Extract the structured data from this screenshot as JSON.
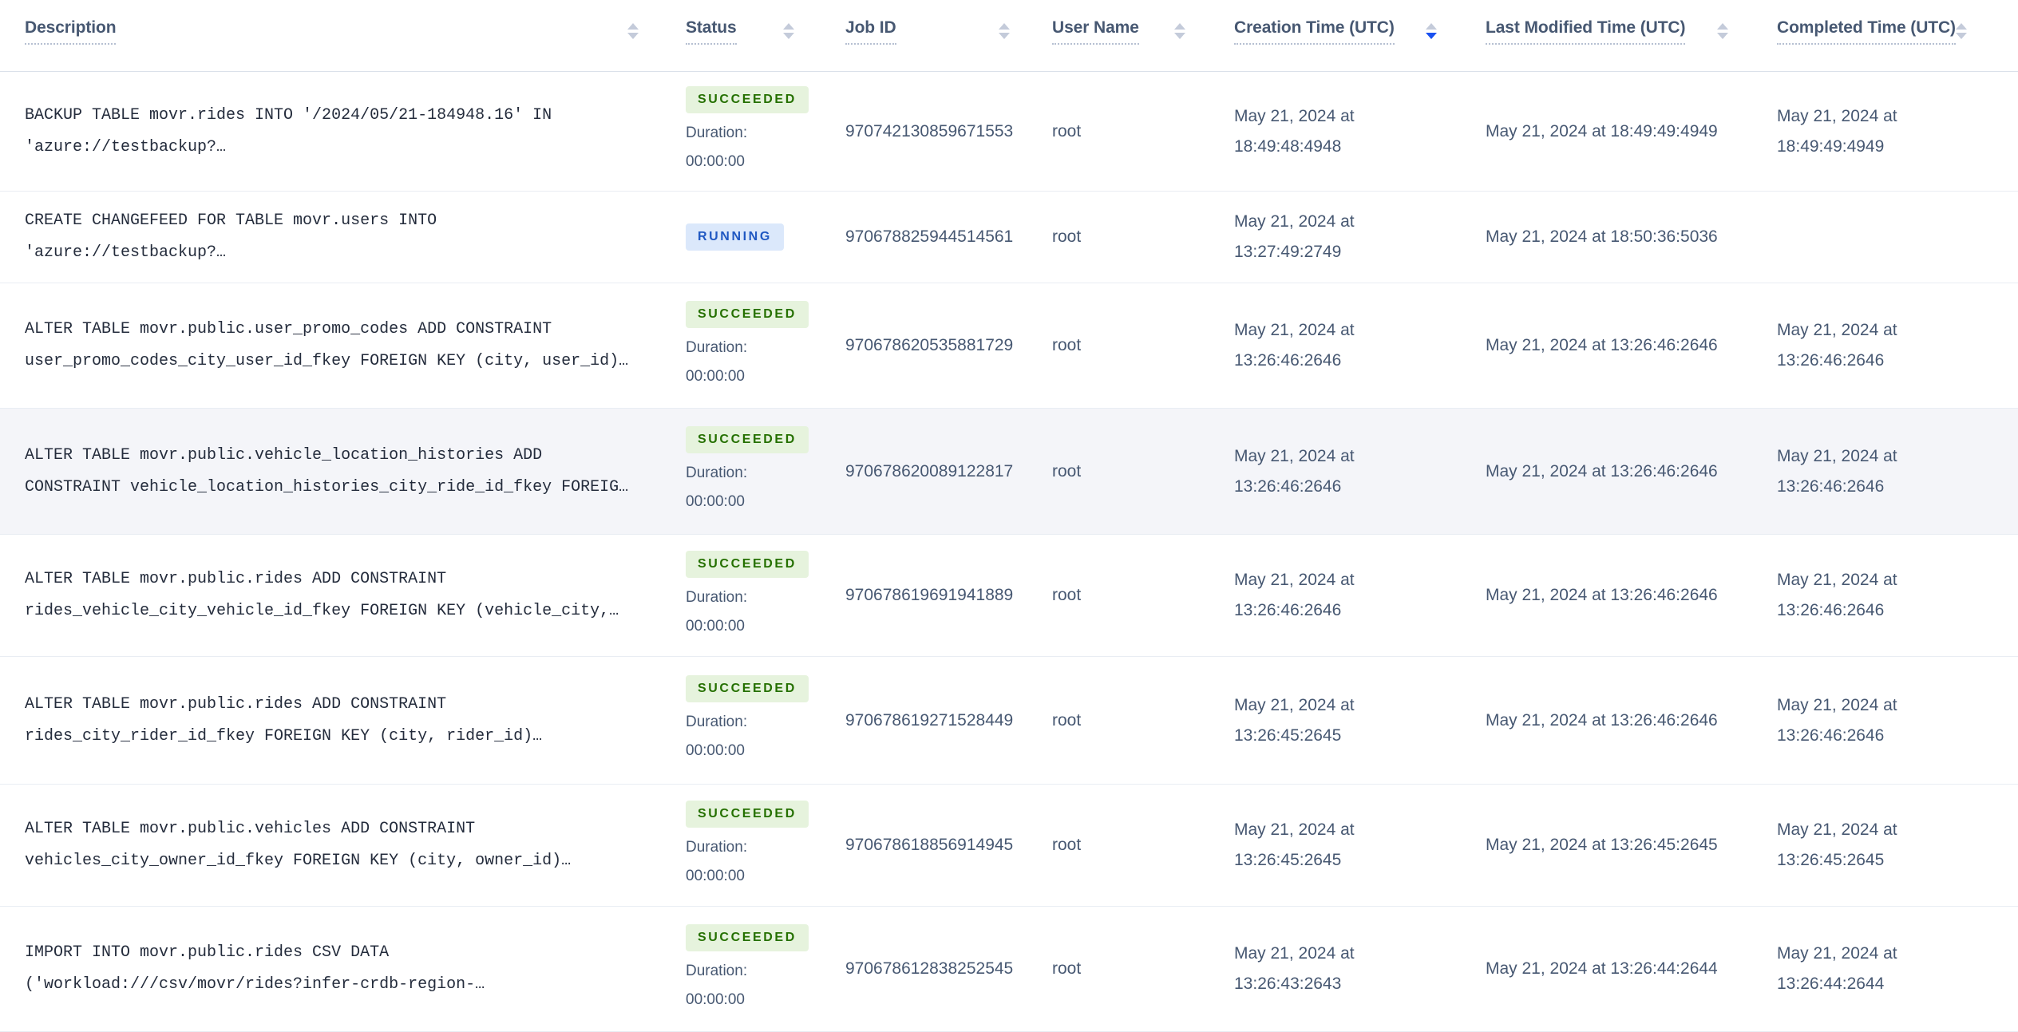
{
  "colors": {
    "sort_active_blue": "#1a51f0",
    "succeeded_bg": "#e6f3dd",
    "succeeded_text": "#257000",
    "running_bg": "#dbe8fb",
    "running_text": "#2058c2",
    "header_text": "#475872",
    "body_text": "#475872",
    "description_text": "#242c3c",
    "row_highlight_bg": "#f4f5f9"
  },
  "table": {
    "columns": [
      {
        "key": "description",
        "label": "Description",
        "sort": "none"
      },
      {
        "key": "status",
        "label": "Status",
        "sort": "none"
      },
      {
        "key": "job_id",
        "label": "Job ID",
        "sort": "none"
      },
      {
        "key": "user_name",
        "label": "User Name",
        "sort": "none"
      },
      {
        "key": "creation_time",
        "label": "Creation Time (UTC)",
        "sort": "desc"
      },
      {
        "key": "last_modified_time",
        "label": "Last Modified Time (UTC)",
        "sort": "none"
      },
      {
        "key": "completed_time",
        "label": "Completed Time (UTC)",
        "sort": "none"
      }
    ],
    "rows": [
      {
        "description_line1": "BACKUP TABLE movr.rides INTO '/2024/05/21-184948.16' IN",
        "description_line2": "'azure://testbackup?…",
        "status": "SUCCEEDED",
        "duration_label": "Duration:",
        "duration": "00:00:00",
        "job_id": "970742130859671553",
        "user_name": "root",
        "created_line1": "May 21, 2024 at",
        "created_line2": "18:49:48:4948",
        "modified": "May 21, 2024 at 18:49:49:4949",
        "completed_line1": "May 21, 2024 at",
        "completed_line2": "18:49:49:4949",
        "highlighted": false
      },
      {
        "description_line1": "CREATE CHANGEFEED FOR TABLE movr.users INTO",
        "description_line2": "'azure://testbackup?…",
        "status": "RUNNING",
        "duration_label": "",
        "duration": "",
        "job_id": "970678825944514561",
        "user_name": "root",
        "created_line1": "May 21, 2024 at",
        "created_line2": "13:27:49:2749",
        "modified": "May 21, 2024 at 18:50:36:5036",
        "completed_line1": "",
        "completed_line2": "",
        "highlighted": false
      },
      {
        "description_line1": "ALTER TABLE movr.public.user_promo_codes ADD CONSTRAINT",
        "description_line2": "user_promo_codes_city_user_id_fkey FOREIGN KEY (city, user_id)…",
        "status": "SUCCEEDED",
        "duration_label": "Duration:",
        "duration": "00:00:00",
        "job_id": "970678620535881729",
        "user_name": "root",
        "created_line1": "May 21, 2024 at",
        "created_line2": "13:26:46:2646",
        "modified": "May 21, 2024 at 13:26:46:2646",
        "completed_line1": "May 21, 2024 at",
        "completed_line2": "13:26:46:2646",
        "highlighted": false
      },
      {
        "description_line1": "ALTER TABLE movr.public.vehicle_location_histories ADD",
        "description_line2": "CONSTRAINT vehicle_location_histories_city_ride_id_fkey FOREIG…",
        "status": "SUCCEEDED",
        "duration_label": "Duration:",
        "duration": "00:00:00",
        "job_id": "970678620089122817",
        "user_name": "root",
        "created_line1": "May 21, 2024 at",
        "created_line2": "13:26:46:2646",
        "modified": "May 21, 2024 at 13:26:46:2646",
        "completed_line1": "May 21, 2024 at",
        "completed_line2": "13:26:46:2646",
        "highlighted": true
      },
      {
        "description_line1": "ALTER TABLE movr.public.rides ADD CONSTRAINT",
        "description_line2": "rides_vehicle_city_vehicle_id_fkey FOREIGN KEY (vehicle_city,…",
        "status": "SUCCEEDED",
        "duration_label": "Duration:",
        "duration": "00:00:00",
        "job_id": "970678619691941889",
        "user_name": "root",
        "created_line1": "May 21, 2024 at",
        "created_line2": "13:26:46:2646",
        "modified": "May 21, 2024 at 13:26:46:2646",
        "completed_line1": "May 21, 2024 at",
        "completed_line2": "13:26:46:2646",
        "highlighted": false
      },
      {
        "description_line1": "ALTER TABLE movr.public.rides ADD CONSTRAINT",
        "description_line2": "rides_city_rider_id_fkey FOREIGN KEY (city, rider_id)…",
        "status": "SUCCEEDED",
        "duration_label": "Duration:",
        "duration": "00:00:00",
        "job_id": "970678619271528449",
        "user_name": "root",
        "created_line1": "May 21, 2024 at",
        "created_line2": "13:26:45:2645",
        "modified": "May 21, 2024 at 13:26:46:2646",
        "completed_line1": "May 21, 2024 at",
        "completed_line2": "13:26:46:2646",
        "highlighted": false
      },
      {
        "description_line1": "ALTER TABLE movr.public.vehicles ADD CONSTRAINT",
        "description_line2": "vehicles_city_owner_id_fkey FOREIGN KEY (city, owner_id)…",
        "status": "SUCCEEDED",
        "duration_label": "Duration:",
        "duration": "00:00:00",
        "job_id": "970678618856914945",
        "user_name": "root",
        "created_line1": "May 21, 2024 at",
        "created_line2": "13:26:45:2645",
        "modified": "May 21, 2024 at 13:26:45:2645",
        "completed_line1": "May 21, 2024 at",
        "completed_line2": "13:26:45:2645",
        "highlighted": false
      },
      {
        "description_line1": "IMPORT INTO movr.public.rides CSV DATA",
        "description_line2": "('workload:///csv/movr/rides?infer-crdb-region-…",
        "status": "SUCCEEDED",
        "duration_label": "Duration:",
        "duration": "00:00:00",
        "job_id": "970678612838252545",
        "user_name": "root",
        "created_line1": "May 21, 2024 at",
        "created_line2": "13:26:43:2643",
        "modified": "May 21, 2024 at 13:26:44:2644",
        "completed_line1": "May 21, 2024 at",
        "completed_line2": "13:26:44:2644",
        "highlighted": false
      }
    ]
  }
}
